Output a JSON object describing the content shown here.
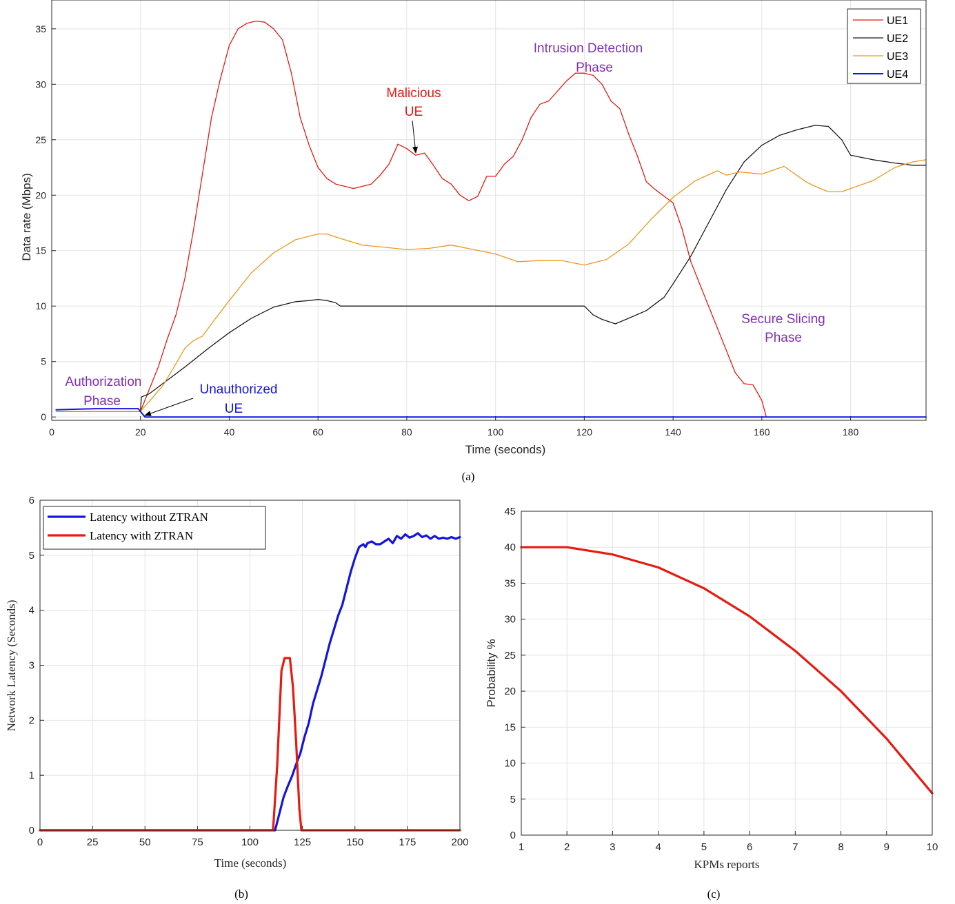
{
  "colors": {
    "ue1": "#e8190f",
    "ue2": "#1a1a1a",
    "ue3": "#f0961e",
    "ue4": "#1414e0",
    "phase": "#7e2fb8",
    "annot_red": "#e8190f",
    "annot_blue": "#1414e0",
    "lat_without": "#1414e0",
    "lat_with": "#e8190f",
    "prob": "#e8190f"
  },
  "chart_data": [
    {
      "type": "line",
      "caption": "(a)",
      "xlabel": "Time (seconds)",
      "ylabel": "Data rate (Mbps)",
      "xlim": [
        0,
        197
      ],
      "ylim": [
        -0.3,
        37.6
      ],
      "xticks": [
        0,
        20,
        40,
        60,
        80,
        100,
        120,
        140,
        160,
        180
      ],
      "yticks": [
        0,
        5,
        10,
        15,
        20,
        25,
        30,
        35
      ],
      "grid": true,
      "legend_position": "top-right",
      "series": [
        {
          "name": "UE1",
          "color": "#e8190f",
          "x": [
            1,
            20,
            22,
            24,
            26,
            28,
            30,
            32,
            34,
            36,
            38,
            40,
            42,
            44,
            46,
            48,
            50,
            52,
            54,
            56,
            58,
            60,
            62,
            64,
            66,
            68,
            70,
            72,
            74,
            76,
            78,
            80,
            82,
            84,
            86,
            88,
            90,
            92,
            94,
            96,
            98,
            100,
            102,
            104,
            106,
            108,
            110,
            112,
            114,
            116,
            118,
            120,
            122,
            124,
            126,
            128,
            130,
            132,
            134,
            136,
            138,
            140,
            142,
            144,
            146,
            148,
            150,
            152,
            154,
            156,
            158,
            160,
            161,
            161.5,
            197
          ],
          "y": [
            0.5,
            0.5,
            2.5,
            4.5,
            7,
            9.2,
            12.5,
            17,
            22,
            27,
            30.5,
            33.5,
            35,
            35.5,
            35.7,
            35.6,
            35,
            34,
            31,
            27,
            24.5,
            22.5,
            21.5,
            21,
            20.8,
            20.6,
            20.8,
            21,
            21.8,
            22.8,
            24.6,
            24.2,
            23.6,
            23.8,
            22.7,
            21.5,
            21,
            20,
            19.5,
            19.9,
            21.7,
            21.7,
            22.8,
            23.5,
            25,
            27,
            28.2,
            28.5,
            29.4,
            30.3,
            31,
            31,
            30.8,
            30,
            28.5,
            27.8,
            25.5,
            23.5,
            21.2,
            20.5,
            19.9,
            19.3,
            17,
            14,
            12,
            10,
            8,
            6,
            4,
            3,
            2.9,
            1.5,
            0,
            0,
            0
          ]
        },
        {
          "name": "UE2",
          "color": "#1a1a1a",
          "x": [
            1,
            20,
            20.2,
            22,
            25,
            30,
            35,
            40,
            45,
            50,
            55,
            58,
            60,
            62,
            64,
            65,
            70,
            80,
            100,
            110,
            120,
            122,
            124,
            127,
            130,
            134,
            138,
            140,
            144,
            148,
            152,
            156,
            160,
            164,
            168,
            172,
            175,
            178,
            180,
            185,
            190,
            194,
            197
          ],
          "y": [
            0.5,
            0.5,
            1.8,
            2.1,
            3,
            4.5,
            6.1,
            7.6,
            8.9,
            9.9,
            10.4,
            10.5,
            10.6,
            10.5,
            10.3,
            10,
            10,
            10,
            10,
            10,
            10,
            9.2,
            8.8,
            8.4,
            8.9,
            9.6,
            10.8,
            12,
            14.5,
            17.5,
            20.5,
            23,
            24.5,
            25.4,
            25.9,
            26.3,
            26.2,
            25,
            23.6,
            23.2,
            22.9,
            22.7,
            22.7
          ]
        },
        {
          "name": "UE3",
          "color": "#f0961e",
          "x": [
            1,
            20,
            22,
            25,
            28,
            30,
            32,
            34,
            36,
            40,
            45,
            50,
            55,
            60,
            62,
            65,
            70,
            75,
            80,
            85,
            90,
            95,
            100,
            105,
            110,
            115,
            120,
            125,
            130,
            135,
            140,
            145,
            150,
            152,
            155,
            160,
            165,
            170,
            172,
            175,
            178,
            180,
            185,
            190,
            194,
            197
          ],
          "y": [
            0.5,
            0.5,
            1.4,
            2.8,
            4.8,
            6.2,
            6.9,
            7.3,
            8.4,
            10.5,
            13,
            14.8,
            16,
            16.5,
            16.5,
            16.1,
            15.5,
            15.3,
            15.1,
            15.2,
            15.5,
            15.1,
            14.7,
            14,
            14.1,
            14.1,
            13.7,
            14.2,
            15.6,
            17.8,
            19.8,
            21.3,
            22.2,
            21.8,
            22.1,
            21.9,
            22.6,
            21.2,
            20.8,
            20.3,
            20.3,
            20.6,
            21.3,
            22.5,
            23,
            23.2
          ]
        },
        {
          "name": "UE4",
          "color": "#1414e0",
          "x": [
            1,
            10,
            19.5,
            21,
            197
          ],
          "y": [
            0.65,
            0.75,
            0.75,
            0,
            0
          ]
        }
      ],
      "annotations": [
        {
          "text": [
            "Authorization",
            "Phase"
          ],
          "color": "#7e2fb8"
        },
        {
          "text": [
            "Unauthorized",
            "UE"
          ],
          "color": "#1414e0"
        },
        {
          "text": [
            "Malicious",
            "UE"
          ],
          "color": "#e8190f"
        },
        {
          "text": [
            "Intrusion Detection",
            "Phase"
          ],
          "color": "#7e2fb8"
        },
        {
          "text": [
            "Secure Slicing",
            "Phase"
          ],
          "color": "#7e2fb8"
        }
      ]
    },
    {
      "type": "line",
      "caption": "(b)",
      "xlabel": "Time (seconds)",
      "ylabel": "Network Latency (Seconds)",
      "xlim": [
        0,
        200
      ],
      "ylim": [
        0,
        6
      ],
      "xticks": [
        0,
        25,
        50,
        75,
        100,
        125,
        150,
        175,
        200
      ],
      "yticks": [
        0,
        1,
        2,
        3,
        4,
        5,
        6
      ],
      "grid": true,
      "legend_position": "top-left",
      "series": [
        {
          "name": "Latency without ZTRAN",
          "color": "#1414e0",
          "x": [
            0,
            112,
            114,
            116,
            118,
            120,
            122,
            124,
            126,
            128,
            130,
            132,
            134,
            136,
            138,
            140,
            142,
            144,
            146,
            148,
            150,
            152,
            154,
            155,
            156,
            158,
            160,
            162,
            164,
            166,
            168,
            170,
            172,
            174,
            176,
            178,
            180,
            182,
            184,
            186,
            188,
            190,
            192,
            194,
            196,
            198,
            200
          ],
          "y": [
            0,
            0,
            0.3,
            0.6,
            0.8,
            0.98,
            1.2,
            1.4,
            1.7,
            1.95,
            2.3,
            2.55,
            2.8,
            3.1,
            3.4,
            3.65,
            3.9,
            4.1,
            4.4,
            4.7,
            4.95,
            5.15,
            5.2,
            5.15,
            5.22,
            5.25,
            5.2,
            5.2,
            5.25,
            5.3,
            5.22,
            5.35,
            5.3,
            5.38,
            5.32,
            5.35,
            5.4,
            5.33,
            5.36,
            5.3,
            5.35,
            5.3,
            5.32,
            5.3,
            5.33,
            5.3,
            5.33
          ]
        },
        {
          "name": "Latency with ZTRAN",
          "color": "#e8190f",
          "x": [
            0,
            111,
            113,
            115,
            116.5,
            119,
            120.5,
            122,
            123.5,
            124.5,
            200
          ],
          "y": [
            0,
            0,
            1.2,
            2.9,
            3.13,
            3.13,
            2.6,
            1.6,
            0.4,
            0,
            0
          ]
        }
      ]
    },
    {
      "type": "line",
      "caption": "(c)",
      "xlabel": "KPMs reports",
      "ylabel": "Probability %",
      "xlim": [
        1,
        10
      ],
      "ylim": [
        0,
        45
      ],
      "xticks": [
        1,
        2,
        3,
        4,
        5,
        6,
        7,
        8,
        9,
        10
      ],
      "yticks": [
        0,
        5,
        10,
        15,
        20,
        25,
        30,
        35,
        40,
        45
      ],
      "grid": true,
      "series": [
        {
          "color": "#e8190f",
          "x": [
            1,
            2,
            3,
            4,
            5,
            6,
            7,
            8,
            9,
            10
          ],
          "y": [
            40,
            40,
            39,
            37.2,
            34.3,
            30.4,
            25.6,
            20,
            13.4,
            5.8
          ]
        }
      ]
    }
  ]
}
